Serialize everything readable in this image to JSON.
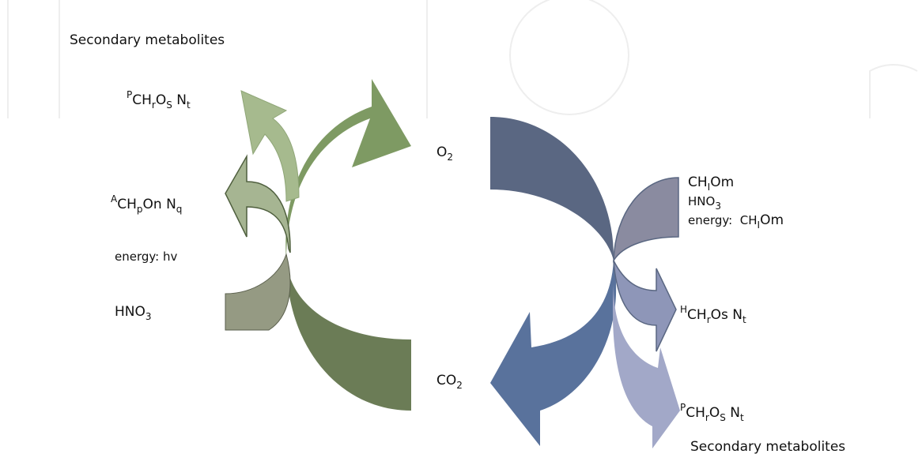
{
  "left": {
    "secondary_metabolites": "Secondary metabolites",
    "p_product": [
      "P",
      "CH",
      "r",
      "O",
      "S",
      " N",
      "t"
    ],
    "a_product": [
      "A",
      "CH",
      "p",
      "O",
      "n",
      " N",
      "q"
    ],
    "energy": "energy: hv",
    "nitrate": [
      "HNO",
      "3"
    ]
  },
  "right": {
    "o2": [
      "O",
      "2"
    ],
    "co2": [
      "CO",
      "2"
    ],
    "ch_input": [
      "CH",
      "I",
      "O",
      "m"
    ],
    "nitrate": [
      "HNO",
      "3"
    ],
    "energy": [
      "energy:  CH",
      "I",
      "O",
      "m"
    ],
    "h_product": [
      "H",
      "CH",
      "r",
      "O",
      "s",
      " N",
      "t"
    ],
    "p_product": [
      "P",
      "CH",
      "r",
      "O",
      "S",
      " N",
      "t"
    ],
    "secondary_metabolites": "Secondary metabolites"
  }
}
